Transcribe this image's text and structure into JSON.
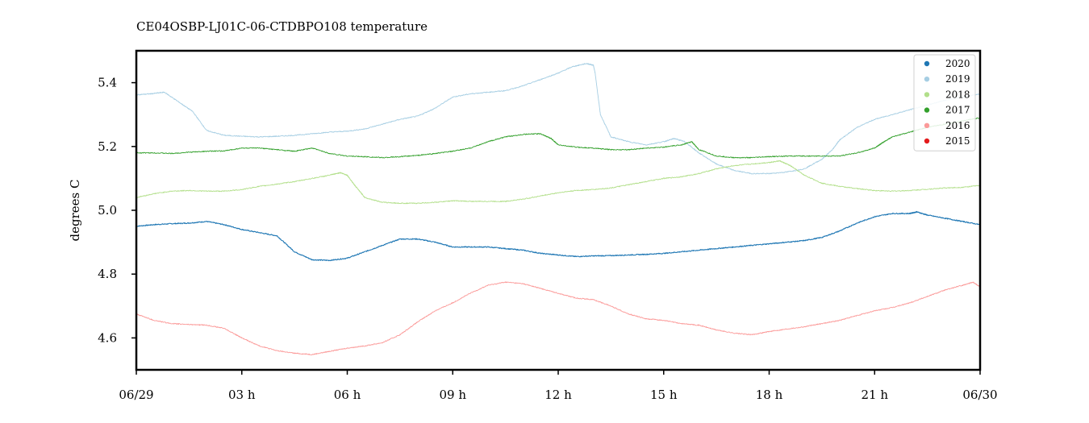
{
  "chart_data": {
    "type": "line",
    "title": "CE04OSBP-LJ01C-06-CTDBPO108 temperature",
    "xlabel": "",
    "ylabel": "degrees C",
    "xlim": [
      0,
      24
    ],
    "ylim": [
      4.5,
      5.5
    ],
    "x_ticks": [
      0,
      3,
      6,
      9,
      12,
      15,
      18,
      21,
      24
    ],
    "x_tick_labels": [
      "06/29",
      "03 h",
      "06 h",
      "09 h",
      "12 h",
      "15 h",
      "18 h",
      "21 h",
      "06/30"
    ],
    "y_ticks": [
      4.6,
      4.8,
      5.0,
      5.2,
      5.4
    ],
    "y_tick_labels": [
      "4.6",
      "4.8",
      "5.0",
      "5.2",
      "5.4"
    ],
    "grid": false,
    "legend_position": "top-right",
    "series": [
      {
        "name": "2020",
        "color": "#1f77b4",
        "x": [
          0,
          0.5,
          1,
          1.5,
          2,
          2.5,
          3,
          3.5,
          4,
          4.5,
          5,
          5.5,
          6,
          6.5,
          7,
          7.5,
          8,
          8.5,
          9,
          9.5,
          10,
          10.5,
          11,
          11.5,
          12,
          12.5,
          13,
          13.5,
          14,
          14.5,
          15,
          15.5,
          16,
          16.5,
          17,
          17.5,
          18,
          18.5,
          19,
          19.5,
          20,
          20.5,
          21,
          21.5,
          22,
          22.2,
          22.5,
          23,
          23.5,
          24
        ],
        "y": [
          4.95,
          4.955,
          4.958,
          4.96,
          4.965,
          4.955,
          4.94,
          4.93,
          4.92,
          4.87,
          4.845,
          4.843,
          4.85,
          4.87,
          4.89,
          4.91,
          4.91,
          4.9,
          4.885,
          4.885,
          4.885,
          4.88,
          4.875,
          4.865,
          4.86,
          4.855,
          4.857,
          4.858,
          4.86,
          4.862,
          4.865,
          4.87,
          4.875,
          4.88,
          4.885,
          4.89,
          4.895,
          4.9,
          4.905,
          4.915,
          4.935,
          4.96,
          4.98,
          4.99,
          4.99,
          4.995,
          4.985,
          4.975,
          4.965,
          4.955
        ]
      },
      {
        "name": "2019",
        "color": "#a6cee3",
        "x": [
          0,
          0.4,
          0.8,
          1.2,
          1.6,
          2,
          2.5,
          3,
          3.5,
          4,
          4.5,
          5,
          5.5,
          6,
          6.5,
          7,
          7.5,
          8,
          8.5,
          9,
          9.5,
          10,
          10.5,
          11,
          11.5,
          12,
          12.4,
          12.8,
          13,
          13.05,
          13.2,
          13.5,
          14,
          14.5,
          15,
          15.3,
          15.6,
          16,
          16.5,
          17,
          17.5,
          18,
          18.5,
          19,
          19.5,
          19.8,
          20,
          20.5,
          21,
          21.5,
          22,
          22.5,
          23,
          23.5,
          24
        ],
        "y": [
          5.362,
          5.365,
          5.37,
          5.34,
          5.31,
          5.25,
          5.235,
          5.232,
          5.23,
          5.232,
          5.235,
          5.24,
          5.245,
          5.248,
          5.255,
          5.27,
          5.285,
          5.295,
          5.32,
          5.355,
          5.365,
          5.37,
          5.375,
          5.39,
          5.41,
          5.43,
          5.45,
          5.46,
          5.455,
          5.43,
          5.3,
          5.23,
          5.215,
          5.205,
          5.215,
          5.225,
          5.215,
          5.18,
          5.145,
          5.125,
          5.115,
          5.115,
          5.12,
          5.13,
          5.16,
          5.19,
          5.22,
          5.26,
          5.285,
          5.3,
          5.315,
          5.33,
          5.345,
          5.355,
          5.365
        ]
      },
      {
        "name": "2018",
        "color": "#b2df8a",
        "x": [
          0,
          0.5,
          1,
          1.5,
          2,
          2.5,
          3,
          3.5,
          4,
          4.5,
          5,
          5.5,
          5.8,
          6,
          6.2,
          6.5,
          7,
          7.5,
          8,
          8.5,
          9,
          9.5,
          10,
          10.5,
          11,
          11.5,
          12,
          12.5,
          13,
          13.5,
          14,
          14.5,
          15,
          15.5,
          16,
          16.5,
          17,
          17.5,
          18,
          18.3,
          18.6,
          19,
          19.5,
          20,
          20.5,
          21,
          21.5,
          22,
          22.5,
          23,
          23.5,
          24
        ],
        "y": [
          5.04,
          5.052,
          5.06,
          5.062,
          5.06,
          5.06,
          5.065,
          5.075,
          5.082,
          5.09,
          5.1,
          5.11,
          5.118,
          5.11,
          5.08,
          5.04,
          5.025,
          5.022,
          5.022,
          5.025,
          5.03,
          5.028,
          5.028,
          5.028,
          5.035,
          5.045,
          5.055,
          5.062,
          5.065,
          5.07,
          5.08,
          5.09,
          5.1,
          5.105,
          5.115,
          5.13,
          5.14,
          5.145,
          5.15,
          5.155,
          5.14,
          5.11,
          5.085,
          5.075,
          5.068,
          5.062,
          5.06,
          5.062,
          5.066,
          5.07,
          5.072,
          5.078
        ]
      },
      {
        "name": "2017",
        "color": "#33a02c",
        "x": [
          0,
          0.5,
          1,
          1.5,
          2,
          2.5,
          3,
          3.5,
          4,
          4.5,
          5,
          5.5,
          6,
          6.5,
          7,
          7.5,
          8,
          8.5,
          9,
          9.5,
          10,
          10.5,
          11,
          11.5,
          11.8,
          12,
          12.5,
          13,
          13.5,
          14,
          14.5,
          15,
          15.5,
          15.8,
          16,
          16.5,
          17,
          17.5,
          18,
          18.5,
          19,
          19.5,
          20,
          20.5,
          21,
          21.2,
          21.5,
          22,
          22.5,
          23,
          23.5,
          24
        ],
        "y": [
          5.18,
          5.18,
          5.178,
          5.182,
          5.185,
          5.186,
          5.195,
          5.195,
          5.19,
          5.185,
          5.195,
          5.178,
          5.17,
          5.168,
          5.165,
          5.168,
          5.172,
          5.178,
          5.185,
          5.195,
          5.215,
          5.23,
          5.238,
          5.24,
          5.225,
          5.205,
          5.198,
          5.195,
          5.19,
          5.19,
          5.195,
          5.198,
          5.205,
          5.215,
          5.19,
          5.17,
          5.165,
          5.165,
          5.168,
          5.17,
          5.17,
          5.17,
          5.17,
          5.18,
          5.195,
          5.21,
          5.23,
          5.245,
          5.26,
          5.27,
          5.28,
          5.29
        ]
      },
      {
        "name": "2016",
        "color": "#fb9a99",
        "x": [
          0,
          0.5,
          1,
          1.5,
          2,
          2.5,
          3,
          3.5,
          4,
          4.5,
          5,
          5.5,
          6,
          6.5,
          7,
          7.5,
          8,
          8.5,
          9,
          9.5,
          10,
          10.5,
          11,
          11.5,
          12,
          12.5,
          13,
          13.5,
          14,
          14.5,
          15,
          15.5,
          16,
          16.5,
          17,
          17.5,
          18,
          18.5,
          19,
          19.5,
          20,
          20.5,
          21,
          21.5,
          22,
          22.5,
          23,
          23.5,
          23.8,
          24
        ],
        "y": [
          4.675,
          4.655,
          4.645,
          4.642,
          4.64,
          4.63,
          4.6,
          4.575,
          4.56,
          4.552,
          4.548,
          4.558,
          4.568,
          4.575,
          4.585,
          4.61,
          4.65,
          4.685,
          4.71,
          4.74,
          4.765,
          4.775,
          4.77,
          4.755,
          4.74,
          4.725,
          4.72,
          4.7,
          4.675,
          4.66,
          4.655,
          4.645,
          4.64,
          4.625,
          4.615,
          4.61,
          4.62,
          4.628,
          4.635,
          4.645,
          4.655,
          4.67,
          4.685,
          4.695,
          4.71,
          4.73,
          4.75,
          4.765,
          4.775,
          4.76
        ]
      },
      {
        "name": "2015",
        "color": "#e31a1c",
        "x": [],
        "y": []
      }
    ]
  }
}
